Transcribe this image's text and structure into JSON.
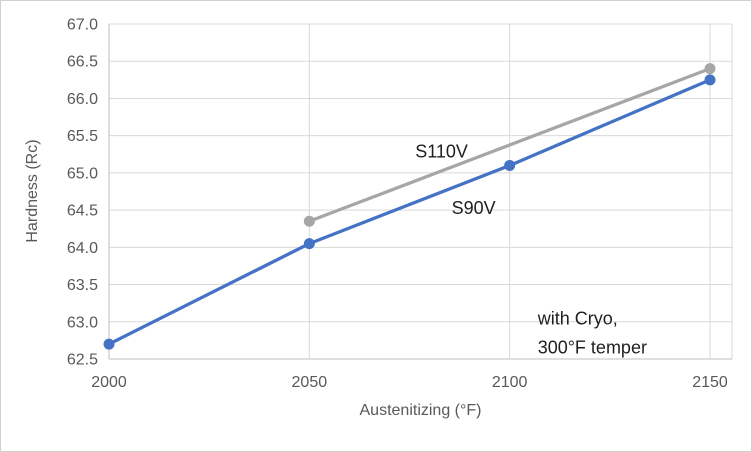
{
  "chart_data": {
    "type": "line",
    "title": "",
    "xlabel": "Austenitizing (°F)",
    "ylabel": "Hardness (Rc)",
    "xticks": [
      2000,
      2050,
      2100,
      2150
    ],
    "xlim": [
      2000,
      2155.5
    ],
    "ylim": [
      62.5,
      67.0
    ],
    "ytick_step": 0.5,
    "grid": true,
    "legend_position": "inline-labels",
    "colors": {
      "s90v": "#4472C4",
      "s110v": "#A6A6A6",
      "gridline": "#D9D9D9",
      "axis_line": "#BFBFBF",
      "tick_text": "#595959",
      "label_text": "#1f1f1f"
    },
    "series": [
      {
        "name": "S110V",
        "color": "#A6A6A6",
        "x": [
          2050,
          2150
        ],
        "y": [
          64.35,
          66.4
        ]
      },
      {
        "name": "S90V",
        "color": "#4472C4",
        "x": [
          2000,
          2050,
          2100,
          2150
        ],
        "y": [
          62.7,
          64.05,
          65.1,
          66.25
        ]
      }
    ],
    "annotations": [
      {
        "id": "s110v-label",
        "lines": [
          "S110V"
        ],
        "x": 2083,
        "y": 65.29,
        "align": "middle",
        "size": 18
      },
      {
        "id": "s90v-label",
        "lines": [
          "S90V"
        ],
        "x": 2091,
        "y": 64.53,
        "align": "middle",
        "size": 18
      },
      {
        "id": "cryo-note",
        "lines": [
          "with Cryo,",
          "300°F temper"
        ],
        "x": 2107,
        "y": 63.05,
        "align": "start",
        "size": 18
      }
    ]
  }
}
